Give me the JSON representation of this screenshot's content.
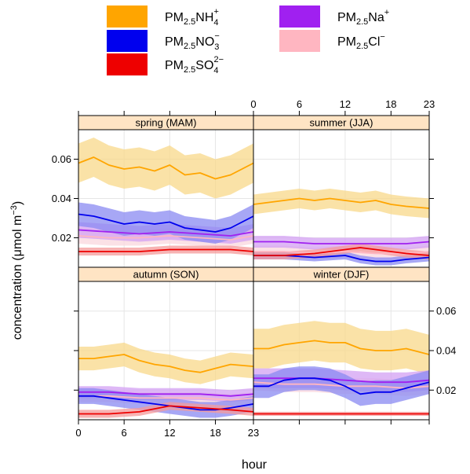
{
  "chart_data": {
    "type": "line",
    "xlabel": "hour",
    "ylabel": "concentration (μmol m",
    "ylabel_exponent": "−3",
    "ylabel_close": ")",
    "x_ticks": [
      0,
      6,
      12,
      18,
      23
    ],
    "y_ticks": [
      0.02,
      0.04,
      0.06
    ],
    "xlim": [
      0,
      23
    ],
    "ylim": [
      0.005,
      0.075
    ],
    "grid": true,
    "legend_position": "top",
    "series_styles": [
      {
        "id": "nh4",
        "color": "#FFA500",
        "band": "#F8D88A",
        "legend": {
          "base": "PM",
          "sub1": "2.5",
          "ion": "NH",
          "sub2": "4",
          "sup2": "+"
        }
      },
      {
        "id": "no3",
        "color": "#0000EE",
        "band": "#8A8AF2",
        "legend": {
          "base": "PM",
          "sub1": "2.5",
          "ion": "NO",
          "sub2": "3",
          "sup2": "−"
        }
      },
      {
        "id": "so4",
        "color": "#EE0000",
        "band": "#F49A9A",
        "legend": {
          "base": "PM",
          "sub1": "2.5",
          "ion": "SO",
          "sub2": "4",
          "sup2": "2−"
        }
      },
      {
        "id": "na",
        "color": "#A020F0",
        "band": "#D3A0F3",
        "legend": {
          "base": "PM",
          "sub1": "2.5",
          "ion": "Na",
          "sub2": "",
          "sup2": "+"
        }
      },
      {
        "id": "cl",
        "color": "#FFB6C1",
        "band": "#FAD7DD",
        "legend": {
          "base": "PM",
          "sub1": "2.5",
          "ion": "Cl",
          "sub2": "",
          "sup2": "−"
        }
      }
    ],
    "panels": [
      {
        "label": "spring (MAM)",
        "series": {
          "nh4": {
            "x": [
              0,
              2,
              4,
              6,
              8,
              10,
              12,
              14,
              16,
              18,
              20,
              23
            ],
            "y": [
              0.058,
              0.061,
              0.057,
              0.055,
              0.056,
              0.054,
              0.057,
              0.052,
              0.053,
              0.05,
              0.052,
              0.058
            ],
            "halfwidth": 0.01
          },
          "no3": {
            "x": [
              0,
              2,
              4,
              6,
              8,
              10,
              12,
              14,
              16,
              18,
              20,
              23
            ],
            "y": [
              0.032,
              0.031,
              0.029,
              0.027,
              0.028,
              0.027,
              0.028,
              0.025,
              0.024,
              0.023,
              0.025,
              0.031
            ],
            "halfwidth": 0.006
          },
          "so4": {
            "x": [
              0,
              4,
              8,
              12,
              16,
              20,
              23
            ],
            "y": [
              0.013,
              0.013,
              0.013,
              0.014,
              0.014,
              0.014,
              0.013
            ],
            "halfwidth": 0.002
          },
          "na": {
            "x": [
              0,
              4,
              8,
              12,
              16,
              20,
              23
            ],
            "y": [
              0.024,
              0.023,
              0.022,
              0.023,
              0.022,
              0.021,
              0.023
            ],
            "halfwidth": 0.004
          },
          "cl": {
            "x": [
              0,
              4,
              8,
              12,
              16,
              20,
              23
            ],
            "y": [
              0.021,
              0.02,
              0.02,
              0.021,
              0.02,
              0.019,
              0.021
            ],
            "halfwidth": 0.004
          }
        }
      },
      {
        "label": "summer (JJA)",
        "series": {
          "nh4": {
            "x": [
              0,
              2,
              4,
              6,
              8,
              10,
              12,
              14,
              16,
              18,
              20,
              23
            ],
            "y": [
              0.037,
              0.038,
              0.039,
              0.04,
              0.039,
              0.04,
              0.039,
              0.038,
              0.039,
              0.037,
              0.036,
              0.035
            ],
            "halfwidth": 0.005
          },
          "no3": {
            "x": [
              0,
              4,
              8,
              12,
              14,
              16,
              18,
              20,
              23
            ],
            "y": [
              0.011,
              0.011,
              0.01,
              0.011,
              0.009,
              0.008,
              0.008,
              0.009,
              0.01
            ],
            "halfwidth": 0.002
          },
          "so4": {
            "x": [
              0,
              4,
              8,
              12,
              14,
              16,
              18,
              20,
              23
            ],
            "y": [
              0.011,
              0.011,
              0.012,
              0.014,
              0.015,
              0.014,
              0.013,
              0.012,
              0.011
            ],
            "halfwidth": 0.002
          },
          "na": {
            "x": [
              0,
              4,
              8,
              12,
              16,
              20,
              23
            ],
            "y": [
              0.018,
              0.018,
              0.017,
              0.017,
              0.017,
              0.017,
              0.018
            ],
            "halfwidth": 0.003
          },
          "cl": {
            "x": [
              0,
              4,
              8,
              12,
              16,
              20,
              23
            ],
            "y": [
              0.013,
              0.013,
              0.012,
              0.013,
              0.012,
              0.012,
              0.013
            ],
            "halfwidth": 0.003
          }
        }
      },
      {
        "label": "autumn (SON)",
        "series": {
          "nh4": {
            "x": [
              0,
              2,
              4,
              6,
              8,
              10,
              12,
              14,
              16,
              18,
              20,
              23
            ],
            "y": [
              0.036,
              0.036,
              0.037,
              0.038,
              0.035,
              0.033,
              0.032,
              0.03,
              0.029,
              0.031,
              0.033,
              0.032
            ],
            "halfwidth": 0.006
          },
          "no3": {
            "x": [
              0,
              2,
              4,
              6,
              8,
              10,
              12,
              14,
              16,
              18,
              20,
              23
            ],
            "y": [
              0.017,
              0.017,
              0.016,
              0.015,
              0.014,
              0.013,
              0.012,
              0.011,
              0.01,
              0.01,
              0.011,
              0.013
            ],
            "halfwidth": 0.004
          },
          "so4": {
            "x": [
              0,
              4,
              8,
              12,
              16,
              20,
              23
            ],
            "y": [
              0.008,
              0.008,
              0.009,
              0.012,
              0.011,
              0.01,
              0.009
            ],
            "halfwidth": 0.002
          },
          "na": {
            "x": [
              0,
              4,
              8,
              12,
              16,
              20,
              23
            ],
            "y": [
              0.019,
              0.019,
              0.018,
              0.018,
              0.018,
              0.017,
              0.018
            ],
            "halfwidth": 0.003
          },
          "cl": {
            "x": [
              0,
              4,
              8,
              12,
              16,
              20,
              23
            ],
            "y": [
              0.017,
              0.017,
              0.016,
              0.016,
              0.016,
              0.015,
              0.016
            ],
            "halfwidth": 0.003
          }
        }
      },
      {
        "label": "winter (DJF)",
        "series": {
          "nh4": {
            "x": [
              0,
              2,
              4,
              6,
              8,
              10,
              12,
              14,
              16,
              18,
              20,
              23
            ],
            "y": [
              0.041,
              0.041,
              0.043,
              0.044,
              0.045,
              0.044,
              0.044,
              0.041,
              0.04,
              0.04,
              0.041,
              0.038
            ],
            "halfwidth": 0.01
          },
          "no3": {
            "x": [
              0,
              2,
              4,
              6,
              8,
              10,
              12,
              14,
              16,
              18,
              20,
              23
            ],
            "y": [
              0.022,
              0.022,
              0.025,
              0.026,
              0.026,
              0.025,
              0.022,
              0.018,
              0.019,
              0.019,
              0.021,
              0.024
            ],
            "halfwidth": 0.006
          },
          "so4": {
            "x": [
              0,
              4,
              8,
              12,
              16,
              20,
              23
            ],
            "y": [
              0.008,
              0.008,
              0.008,
              0.008,
              0.008,
              0.008,
              0.008
            ],
            "halfwidth": 0.001
          },
          "na": {
            "x": [
              0,
              4,
              8,
              12,
              16,
              20,
              23
            ],
            "y": [
              0.026,
              0.026,
              0.026,
              0.025,
              0.024,
              0.024,
              0.025
            ],
            "halfwidth": 0.005
          },
          "cl": {
            "x": [
              0,
              4,
              8,
              12,
              16,
              20,
              23
            ],
            "y": [
              0.024,
              0.023,
              0.023,
              0.022,
              0.022,
              0.021,
              0.022
            ],
            "halfwidth": 0.004
          }
        }
      }
    ]
  }
}
